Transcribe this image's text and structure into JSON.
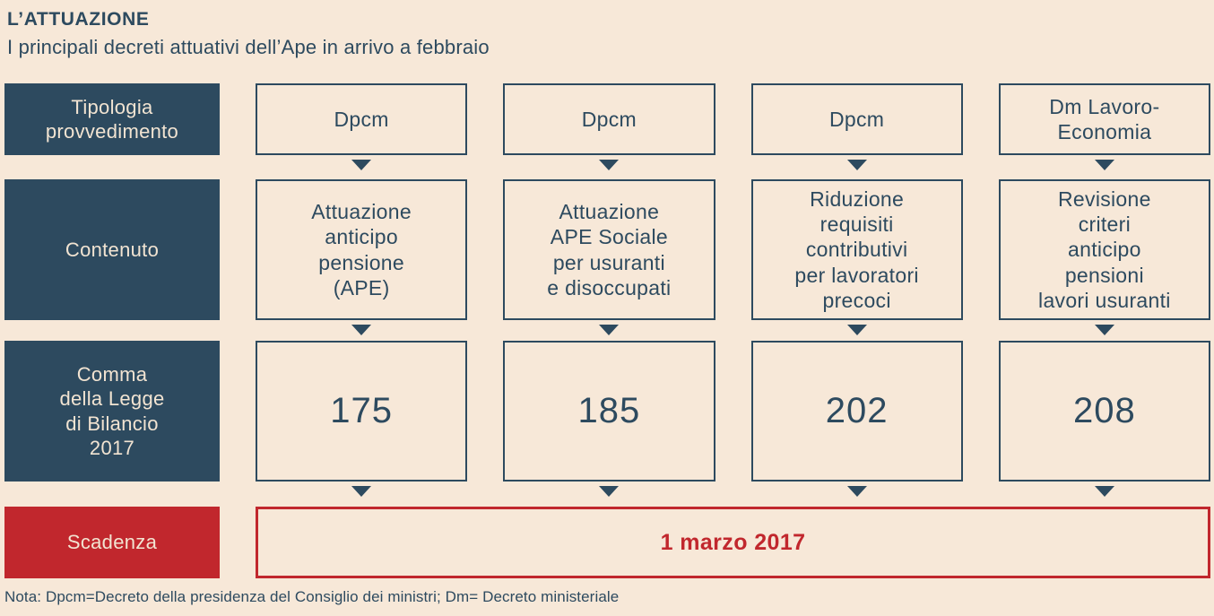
{
  "header": {
    "title": "L’ATTUAZIONE",
    "subtitle": "I principali decreti attuativi dell’Ape in arrivo a febbraio"
  },
  "rows": [
    {
      "label": "Tipologia\nprovvedimento",
      "cells": [
        "Dpcm",
        "Dpcm",
        "Dpcm",
        "Dm Lavoro-\nEconomia"
      ]
    },
    {
      "label": "Contenuto",
      "cells": [
        "Attuazione\nanticipo\npensione\n(APE)",
        "Attuazione\nAPE Sociale\nper usuranti\ne disoccupati",
        "Riduzione\nrequisiti\ncontributivi\nper lavoratori\nprecoci",
        "Revisione\ncriteri\nanticipo\npensioni\nlavori usuranti"
      ]
    },
    {
      "label": "Comma\ndella Legge\ndi Bilancio\n2017",
      "cells": [
        "175",
        "185",
        "202",
        "208"
      ]
    }
  ],
  "deadline": {
    "label": "Scadenza",
    "value": "1 marzo 2017"
  },
  "note": "Nota: Dpcm=Decreto della presidenza del Consiglio dei ministri; Dm= Decreto ministeriale",
  "colors": {
    "navy": "#2d4a5f",
    "red": "#c1272d",
    "cream": "#f7e8d8",
    "cream_text": "#f2e4d2"
  }
}
